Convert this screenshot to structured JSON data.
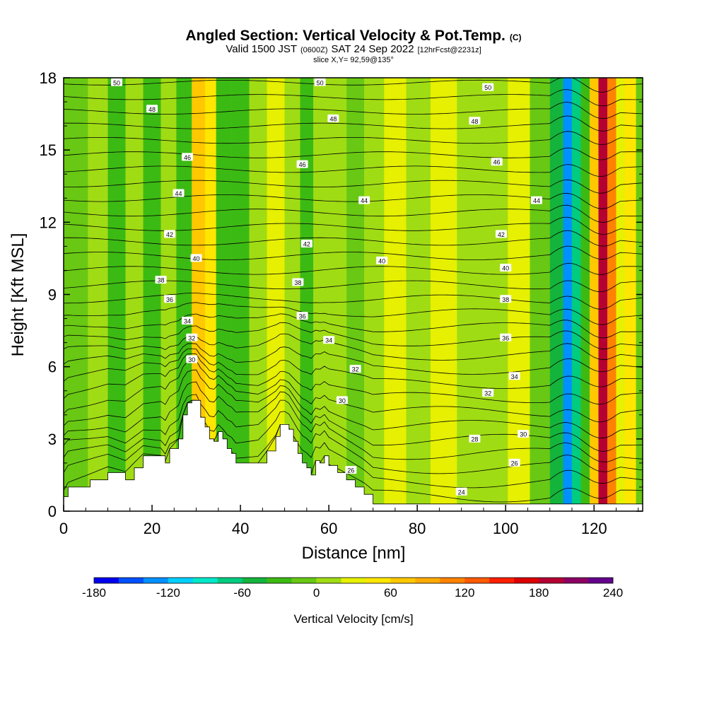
{
  "chart_data": {
    "type": "heatmap",
    "title": "Angled Section: Vertical Velocity & Pot.Temp.",
    "title_tag": "(C)",
    "subtitle": {
      "valid": "Valid 1500 JST",
      "utc": "(0600Z)",
      "date": "SAT 24 Sep 2022",
      "forecast": "[12hrFcst@2231z]"
    },
    "slice_label": "slice X,Y= 92,59@135°",
    "xlabel": "Distance [nm]",
    "ylabel": "Height [Kft MSL]",
    "xlim": [
      0,
      131
    ],
    "ylim": [
      0,
      18
    ],
    "x_ticks": [
      0,
      20,
      40,
      60,
      80,
      100,
      120
    ],
    "y_ticks": [
      0,
      3,
      6,
      9,
      12,
      15,
      18
    ],
    "colorbar": {
      "title": "Vertical Velocity [cm/s]",
      "min": -180,
      "max": 240,
      "step": 20,
      "tick_labels": [
        "-180",
        "-120",
        "-60",
        "0",
        "60",
        "120",
        "180",
        "240"
      ],
      "colors": [
        "#0000f0",
        "#0050ff",
        "#0090ff",
        "#00d0ff",
        "#00e8c8",
        "#00cc80",
        "#14b43c",
        "#3cba14",
        "#68c814",
        "#a0dc14",
        "#e6f000",
        "#ffe600",
        "#ffc800",
        "#ffaa00",
        "#ff8200",
        "#ff5a00",
        "#ff1e00",
        "#dc0000",
        "#b40032",
        "#8c0064",
        "#64008c"
      ]
    },
    "velocity_columns": [
      {
        "x": 3,
        "value": -20
      },
      {
        "x": 8,
        "value": 10
      },
      {
        "x": 12,
        "value": -40
      },
      {
        "x": 16,
        "value": 10
      },
      {
        "x": 20,
        "value": -40
      },
      {
        "x": 24,
        "value": 10
      },
      {
        "x": 27,
        "value": -30
      },
      {
        "x": 31,
        "value": 60
      },
      {
        "x": 33,
        "value": 40
      },
      {
        "x": 36,
        "value": -40
      },
      {
        "x": 40,
        "value": -30
      },
      {
        "x": 44,
        "value": 10
      },
      {
        "x": 48,
        "value": 30
      },
      {
        "x": 52,
        "value": 10
      },
      {
        "x": 55,
        "value": -40
      },
      {
        "x": 58,
        "value": 0
      },
      {
        "x": 62,
        "value": 10
      },
      {
        "x": 66,
        "value": -10
      },
      {
        "x": 70,
        "value": 10
      },
      {
        "x": 75,
        "value": 20
      },
      {
        "x": 80,
        "value": 10
      },
      {
        "x": 86,
        "value": 20
      },
      {
        "x": 92,
        "value": 10
      },
      {
        "x": 98,
        "value": 0
      },
      {
        "x": 103,
        "value": 20
      },
      {
        "x": 108,
        "value": -20
      },
      {
        "x": 112,
        "value": -60
      },
      {
        "x": 114,
        "value": -130
      },
      {
        "x": 116,
        "value": -80
      },
      {
        "x": 118,
        "value": -40
      },
      {
        "x": 120,
        "value": 60
      },
      {
        "x": 122,
        "value": 180
      },
      {
        "x": 124,
        "value": 100
      },
      {
        "x": 126,
        "value": 20
      },
      {
        "x": 128,
        "value": 40
      },
      {
        "x": 131,
        "value": -10
      }
    ],
    "terrain": {
      "x": [
        0,
        1,
        6,
        10,
        14,
        16,
        18,
        22,
        23,
        24,
        26,
        27,
        28,
        29,
        30,
        31,
        32,
        33,
        34,
        35,
        36,
        37,
        38,
        39,
        40,
        42,
        44,
        46,
        48,
        49,
        50,
        51,
        52,
        53,
        54,
        55,
        56,
        57,
        58,
        59,
        60,
        62,
        64,
        66,
        68,
        70,
        131
      ],
      "height": [
        0.6,
        1,
        1.3,
        1.6,
        1.3,
        1.8,
        2.3,
        2.3,
        2.0,
        2.6,
        3.0,
        4.0,
        4.5,
        4.6,
        4.6,
        3.9,
        3.5,
        3.0,
        2.9,
        3.3,
        3.0,
        2.6,
        2.4,
        2.0,
        2.0,
        2.0,
        2.0,
        2.5,
        3.1,
        3.6,
        3.6,
        3.4,
        2.9,
        2.4,
        2.0,
        1.8,
        1.5,
        2.1,
        2.0,
        2.3,
        1.9,
        1.6,
        1.3,
        1.0,
        0.7,
        0.3,
        0.3
      ]
    },
    "isentropes": [
      {
        "label": "24",
        "label_at": {
          "x": 90,
          "y": 0.8
        }
      },
      {
        "label": "26",
        "label_at": {
          "x": 65,
          "y": 1.7
        }
      },
      {
        "label": "26",
        "label_at": {
          "x": 102,
          "y": 2.0
        }
      },
      {
        "label": "28",
        "label_at": {
          "x": 93,
          "y": 3.0
        }
      },
      {
        "label": "30",
        "label_at": {
          "x": 104,
          "y": 3.2
        }
      },
      {
        "label": "30",
        "label_at": {
          "x": 63,
          "y": 4.6
        }
      },
      {
        "label": "32",
        "label_at": {
          "x": 96,
          "y": 4.9
        }
      },
      {
        "label": "32",
        "label_at": {
          "x": 66,
          "y": 5.9
        }
      },
      {
        "label": "34",
        "label_at": {
          "x": 102,
          "y": 5.6
        }
      },
      {
        "label": "34",
        "label_at": {
          "x": 60,
          "y": 7.1
        }
      },
      {
        "label": "36",
        "label_at": {
          "x": 100,
          "y": 7.2
        }
      },
      {
        "label": "36",
        "label_at": {
          "x": 54,
          "y": 8.1
        }
      },
      {
        "label": "38",
        "label_at": {
          "x": 100,
          "y": 8.8
        }
      },
      {
        "label": "38",
        "label_at": {
          "x": 53,
          "y": 9.5
        }
      },
      {
        "label": "40",
        "label_at": {
          "x": 100,
          "y": 10.1
        }
      },
      {
        "label": "40",
        "label_at": {
          "x": 72,
          "y": 10.4
        }
      },
      {
        "label": "42",
        "label_at": {
          "x": 99,
          "y": 11.5
        }
      },
      {
        "label": "42",
        "label_at": {
          "x": 55,
          "y": 11.1
        }
      },
      {
        "label": "44",
        "label_at": {
          "x": 107,
          "y": 12.9
        }
      },
      {
        "label": "44",
        "label_at": {
          "x": 68,
          "y": 12.9
        }
      },
      {
        "label": "46",
        "label_at": {
          "x": 98,
          "y": 14.5
        }
      },
      {
        "label": "46",
        "label_at": {
          "x": 54,
          "y": 14.4
        }
      },
      {
        "label": "48",
        "label_at": {
          "x": 93,
          "y": 16.2
        }
      },
      {
        "label": "48",
        "label_at": {
          "x": 61,
          "y": 16.3
        }
      },
      {
        "label": "50",
        "label_at": {
          "x": 96,
          "y": 17.6
        }
      },
      {
        "label": "50",
        "label_at": {
          "x": 58,
          "y": 17.8
        }
      },
      {
        "label": "50",
        "label_at": {
          "x": 12,
          "y": 17.8
        }
      },
      {
        "label": "48",
        "label_at": {
          "x": 20,
          "y": 16.7
        }
      },
      {
        "label": "46",
        "label_at": {
          "x": 28,
          "y": 14.7
        }
      },
      {
        "label": "44",
        "label_at": {
          "x": 26,
          "y": 13.2
        }
      },
      {
        "label": "42",
        "label_at": {
          "x": 24,
          "y": 11.5
        }
      },
      {
        "label": "40",
        "label_at": {
          "x": 30,
          "y": 10.5
        }
      },
      {
        "label": "38",
        "label_at": {
          "x": 22,
          "y": 9.6
        }
      },
      {
        "label": "36",
        "label_at": {
          "x": 24,
          "y": 8.8
        }
      },
      {
        "label": "34",
        "label_at": {
          "x": 28,
          "y": 7.9
        }
      },
      {
        "label": "32",
        "label_at": {
          "x": 29,
          "y": 7.2
        }
      },
      {
        "label": "30",
        "label_at": {
          "x": 29,
          "y": 6.3
        }
      }
    ]
  }
}
